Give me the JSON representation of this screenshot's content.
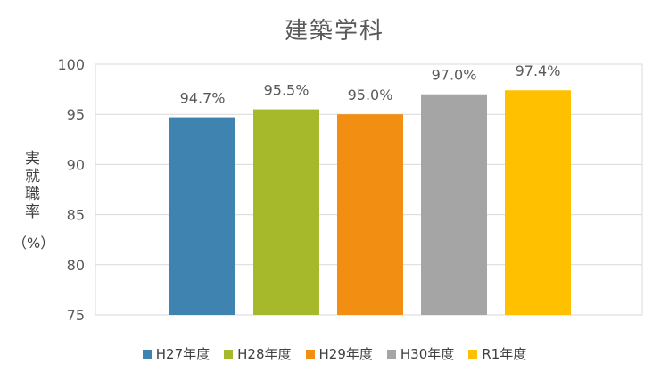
{
  "chart_data": {
    "type": "bar",
    "title": "建築学科",
    "ylabel_vertical": "実就職率",
    "ylabel_unit": "（%）",
    "categories": [
      "H27年度",
      "H28年度",
      "H29年度",
      "H30年度",
      "R1年度"
    ],
    "values": [
      94.7,
      95.5,
      95.0,
      97.0,
      97.4
    ],
    "data_labels": [
      "94.7%",
      "95.5%",
      "95.0%",
      "97.0%",
      "97.4%"
    ],
    "colors": [
      "#3f84b0",
      "#a5b92a",
      "#f28e12",
      "#a5a5a5",
      "#ffc000"
    ],
    "ylim": [
      75,
      100
    ],
    "yticks": [
      75,
      80,
      85,
      90,
      95,
      100
    ],
    "grid": true,
    "legend": "bottom"
  }
}
